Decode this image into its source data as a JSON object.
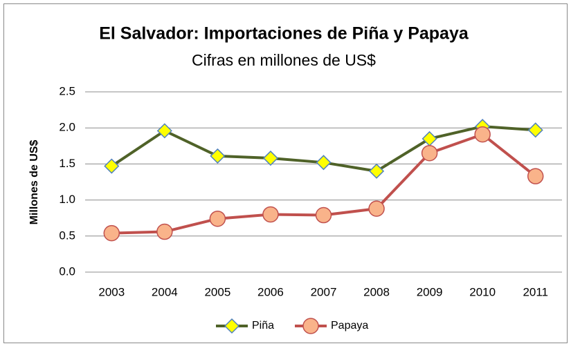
{
  "chart_data": {
    "type": "line",
    "title": "El Salvador: Importaciones de Piña y Papaya",
    "subtitle": "Cifras en millones de US$",
    "y_label": "Millones de US$",
    "categories": [
      "2003",
      "2004",
      "2005",
      "2006",
      "2007",
      "2008",
      "2009",
      "2010",
      "2011"
    ],
    "series": [
      {
        "name": "Piña",
        "color": "#4f6228",
        "marker_color": "#ffff00",
        "marker_edge": "#4f81bd",
        "marker": "diamond",
        "values": [
          1.47,
          1.96,
          1.61,
          1.58,
          1.52,
          1.4,
          1.85,
          2.02,
          1.97
        ]
      },
      {
        "name": "Papaya",
        "color": "#c0504d",
        "marker_color": "#f9b38a",
        "marker_edge": "#c0504d",
        "marker": "circle",
        "values": [
          0.54,
          0.56,
          0.74,
          0.8,
          0.79,
          0.88,
          1.65,
          1.91,
          1.33
        ]
      }
    ],
    "ylim": [
      0,
      2.5
    ],
    "yticks": [
      {
        "value": 0,
        "label": "0.0"
      },
      0.5,
      {
        "value": 1,
        "label": "1.0"
      },
      1.5,
      {
        "value": 2,
        "label": "2.0"
      },
      2.5
    ],
    "grid": true,
    "legend": "bottom"
  }
}
